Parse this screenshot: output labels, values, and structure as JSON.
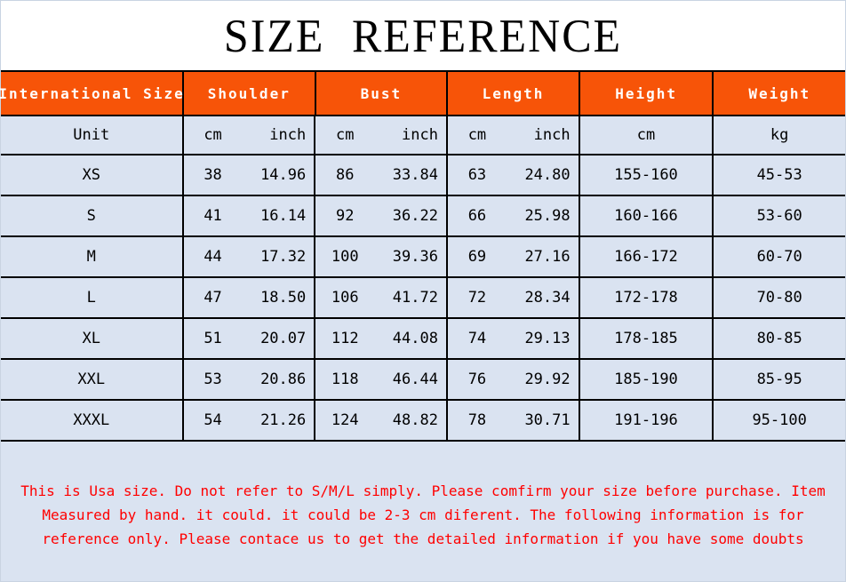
{
  "page": {
    "title": "SIZE REFERENCE"
  },
  "colors": {
    "accent_orange": "#F75408",
    "row_blue": "#DAE3F1",
    "note_red": "#FF0000",
    "grid_black": "#000000"
  },
  "table": {
    "headers": [
      "International Size",
      "Shoulder",
      "Bust",
      "Length",
      "Height",
      "Weight"
    ],
    "unit_row": {
      "size": "Unit",
      "shoulder": {
        "cm": "cm",
        "inch": "inch"
      },
      "bust": {
        "cm": "cm",
        "inch": "inch"
      },
      "length": {
        "cm": "cm",
        "inch": "inch"
      },
      "height": "cm",
      "weight": "kg"
    },
    "rows": [
      {
        "size": "XS",
        "shoulder": {
          "cm": "38",
          "inch": "14.96"
        },
        "bust": {
          "cm": "86",
          "inch": "33.84"
        },
        "length": {
          "cm": "63",
          "inch": "24.80"
        },
        "height": "155-160",
        "weight": "45-53"
      },
      {
        "size": "S",
        "shoulder": {
          "cm": "41",
          "inch": "16.14"
        },
        "bust": {
          "cm": "92",
          "inch": "36.22"
        },
        "length": {
          "cm": "66",
          "inch": "25.98"
        },
        "height": "160-166",
        "weight": "53-60"
      },
      {
        "size": "M",
        "shoulder": {
          "cm": "44",
          "inch": "17.32"
        },
        "bust": {
          "cm": "100",
          "inch": "39.36"
        },
        "length": {
          "cm": "69",
          "inch": "27.16"
        },
        "height": "166-172",
        "weight": "60-70"
      },
      {
        "size": "L",
        "shoulder": {
          "cm": "47",
          "inch": "18.50"
        },
        "bust": {
          "cm": "106",
          "inch": "41.72"
        },
        "length": {
          "cm": "72",
          "inch": "28.34"
        },
        "height": "172-178",
        "weight": "70-80"
      },
      {
        "size": "XL",
        "shoulder": {
          "cm": "51",
          "inch": "20.07"
        },
        "bust": {
          "cm": "112",
          "inch": "44.08"
        },
        "length": {
          "cm": "74",
          "inch": "29.13"
        },
        "height": "178-185",
        "weight": "80-85"
      },
      {
        "size": "XXL",
        "shoulder": {
          "cm": "53",
          "inch": "20.86"
        },
        "bust": {
          "cm": "118",
          "inch": "46.44"
        },
        "length": {
          "cm": "76",
          "inch": "29.92"
        },
        "height": "185-190",
        "weight": "85-95"
      },
      {
        "size": "XXXL",
        "shoulder": {
          "cm": "54",
          "inch": "21.26"
        },
        "bust": {
          "cm": "124",
          "inch": "48.82"
        },
        "length": {
          "cm": "78",
          "inch": "30.71"
        },
        "height": "191-196",
        "weight": "95-100"
      }
    ]
  },
  "note": {
    "lines": [
      "This is Usa size. Do not refer to S/M/L simply. Please comfirm your size before purchase. Item",
      "Measured by hand. it could. it could be 2-3 cm diferent. The following information is for",
      "reference only. Please contace us to get the detailed information if you have some doubts"
    ]
  }
}
